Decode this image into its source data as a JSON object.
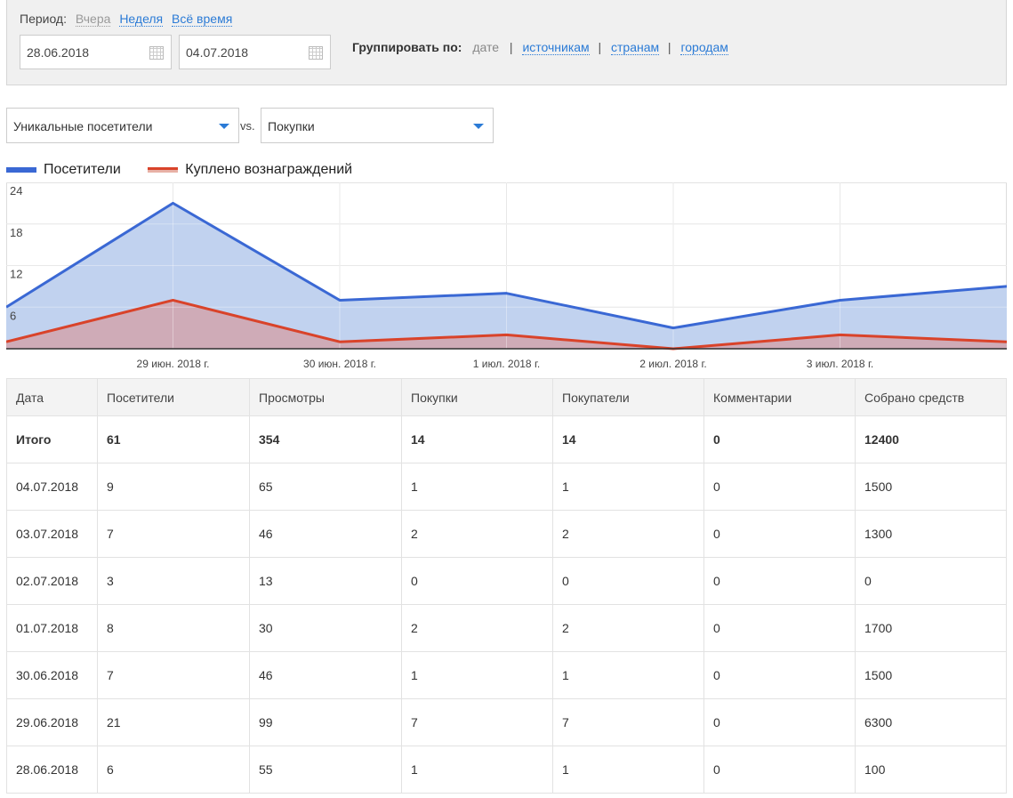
{
  "filter": {
    "period_label": "Период:",
    "period_options": [
      "Вчера",
      "Неделя",
      "Всё время"
    ],
    "date_from": "28.06.2018",
    "date_to": "04.07.2018",
    "group_label": "Группировать по:",
    "group_current": "дате",
    "group_links": [
      "источникам",
      "странам",
      "городам"
    ],
    "icon": "calendar-icon"
  },
  "metrics": {
    "left_select": "Уникальные посетители",
    "vs": "vs.",
    "right_select": "Покупки"
  },
  "legend": [
    {
      "name": "Посетители",
      "color": "#3a68d4"
    },
    {
      "name": "Куплено вознаграждений",
      "color": "#d9432a"
    }
  ],
  "chart_data": {
    "type": "area",
    "ylim": [
      0,
      24
    ],
    "y_ticks": [
      "24",
      "18",
      "12",
      "6"
    ],
    "x": [
      "28.06.2018",
      "29.06.2018",
      "30.06.2018",
      "01.07.2018",
      "02.07.2018",
      "03.07.2018",
      "04.07.2018"
    ],
    "x_tick_labels": [
      "",
      "29 июн. 2018 г.",
      "30 июн. 2018 г.",
      "1 июл. 2018 г.",
      "2 июл. 2018 г.",
      "3 июл. 2018 г.",
      ""
    ],
    "series": [
      {
        "name": "Посетители",
        "values": [
          6,
          21,
          7,
          8,
          3,
          7,
          9
        ],
        "color": "#3a68d4",
        "fill": "#c1d2ef"
      },
      {
        "name": "Куплено вознаграждений",
        "values": [
          1,
          7,
          1,
          2,
          0,
          2,
          1
        ],
        "color": "#d9432a",
        "fill": "#d1a5ad"
      }
    ],
    "grid": true
  },
  "table": {
    "headers": [
      "Дата",
      "Посетители",
      "Просмотры",
      "Покупки",
      "Покупатели",
      "Комментарии",
      "Собрано средств"
    ],
    "total": [
      "Итого",
      "61",
      "354",
      "14",
      "14",
      "0",
      "12400"
    ],
    "rows": [
      [
        "04.07.2018",
        "9",
        "65",
        "1",
        "1",
        "0",
        "1500"
      ],
      [
        "03.07.2018",
        "7",
        "46",
        "2",
        "2",
        "0",
        "1300"
      ],
      [
        "02.07.2018",
        "3",
        "13",
        "0",
        "0",
        "0",
        "0"
      ],
      [
        "01.07.2018",
        "8",
        "30",
        "2",
        "2",
        "0",
        "1700"
      ],
      [
        "30.06.2018",
        "7",
        "46",
        "1",
        "1",
        "0",
        "1500"
      ],
      [
        "29.06.2018",
        "21",
        "99",
        "7",
        "7",
        "0",
        "6300"
      ],
      [
        "28.06.2018",
        "6",
        "55",
        "1",
        "1",
        "0",
        "100"
      ]
    ]
  }
}
